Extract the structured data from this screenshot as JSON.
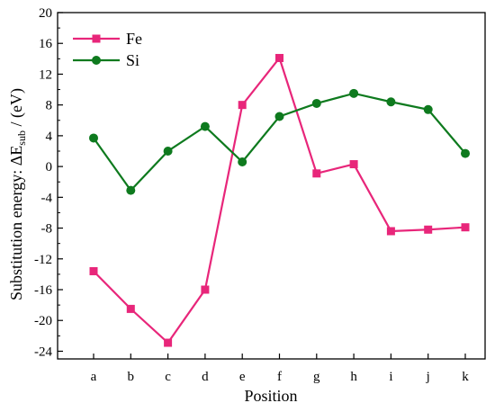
{
  "chart_data": {
    "type": "line",
    "categories": [
      "a",
      "b",
      "c",
      "d",
      "e",
      "f",
      "g",
      "h",
      "i",
      "j",
      "k"
    ],
    "series": [
      {
        "name": "Fe",
        "color": "#e8267a",
        "marker": "square",
        "values": [
          -13.6,
          -18.5,
          -22.9,
          -16.0,
          8.0,
          14.1,
          -0.9,
          0.3,
          -8.4,
          -8.2,
          -7.9
        ]
      },
      {
        "name": "Si",
        "color": "#0e7a1e",
        "marker": "circle",
        "values": [
          3.7,
          -3.1,
          2.0,
          5.2,
          0.6,
          6.5,
          8.2,
          9.5,
          8.4,
          7.4,
          1.7
        ]
      }
    ],
    "xlabel": "Position",
    "ylabel_prefix": "Substitution energy: ΔE",
    "ylabel_subscript": "sub",
    "ylabel_suffix": " / (eV)",
    "ylim": [
      -25,
      20
    ],
    "yticks": [
      -24,
      -20,
      -16,
      -12,
      -8,
      -4,
      0,
      4,
      8,
      12,
      16,
      20
    ],
    "grid": false,
    "legend_position": "top-left"
  }
}
